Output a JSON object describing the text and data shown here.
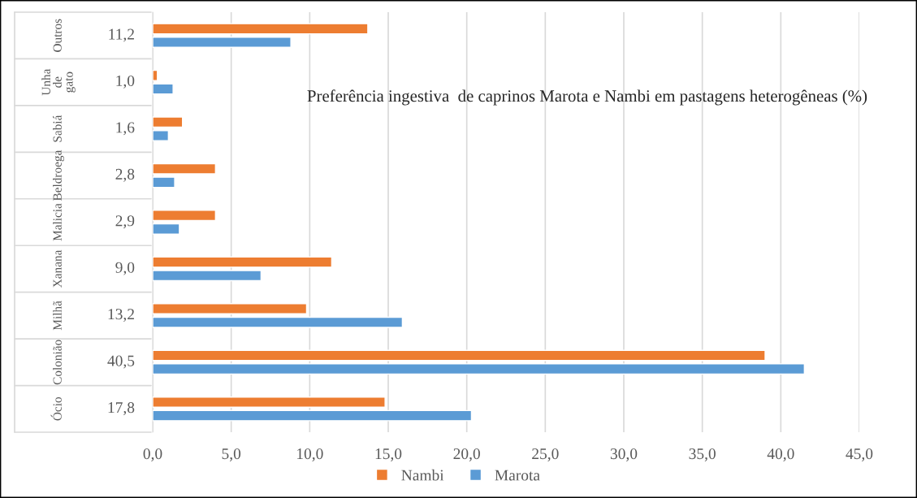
{
  "chart_data": {
    "type": "bar",
    "orientation": "horizontal",
    "title": "Preferência ingestiva  de caprinos Marota e Nambi em pastagens heterogêneas (%)",
    "categories": [
      "Outros",
      "Unha de gato",
      "Sabiá",
      "Beldroega",
      "Malicia",
      "Xanana",
      "Milhã",
      "Colonião",
      "Ócio"
    ],
    "series": [
      {
        "name": "Nambi",
        "color": "#ed7d31",
        "values": [
          13.7,
          0.3,
          1.9,
          4.0,
          4.0,
          11.4,
          9.8,
          39.0,
          14.8
        ]
      },
      {
        "name": "Marota",
        "color": "#5b9bd5",
        "values": [
          8.8,
          1.3,
          1.0,
          1.4,
          1.7,
          6.9,
          15.9,
          41.5,
          20.3
        ]
      }
    ],
    "annotations": [
      "11,2",
      "1,0",
      "1,6",
      "2,8",
      "2,9",
      "9,0",
      "13,2",
      "40,5",
      "17,8"
    ],
    "xlim": [
      0,
      45
    ],
    "xticks": [
      {
        "value": 0,
        "label": "0,0"
      },
      {
        "value": 5,
        "label": "5,0"
      },
      {
        "value": 10,
        "label": "10,0"
      },
      {
        "value": 15,
        "label": "15,0"
      },
      {
        "value": 20,
        "label": "20,0"
      },
      {
        "value": 25,
        "label": "25,0"
      },
      {
        "value": 30,
        "label": "30,0"
      },
      {
        "value": 35,
        "label": "35,0"
      },
      {
        "value": 40,
        "label": "40,0"
      },
      {
        "value": 45,
        "label": "45,0"
      }
    ],
    "grid": "x",
    "legend": "bottom"
  }
}
